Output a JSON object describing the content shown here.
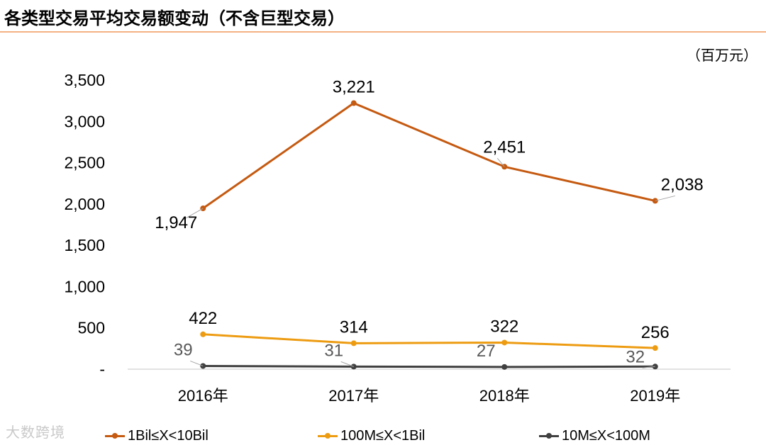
{
  "header": {
    "title": "各类型交易平均交易额变动（不含巨型交易）",
    "unit": "（百万元）"
  },
  "watermark": "大数跨境",
  "chart_data": {
    "type": "line",
    "categories": [
      "2016年",
      "2017年",
      "2018年",
      "2019年"
    ],
    "y_ticks": [
      "-",
      "500",
      "1,000",
      "1,500",
      "2,000",
      "2,500",
      "3,000",
      "3,500"
    ],
    "ylim": [
      0,
      3500
    ],
    "grid": false,
    "legend": "bottom",
    "series": [
      {
        "name": "1Bil≤X<10Bil",
        "values": [
          1947,
          3221,
          2451,
          2038
        ],
        "labels": [
          "1,947",
          "3,221",
          "2,451",
          "2,038"
        ],
        "color": "#c55a11"
      },
      {
        "name": "100M≤X<1Bil",
        "values": [
          422,
          314,
          322,
          256
        ],
        "labels": [
          "422",
          "314",
          "322",
          "256"
        ],
        "color": "#ed9c12"
      },
      {
        "name": "10M≤X<100M",
        "values": [
          39,
          31,
          27,
          32
        ],
        "labels": [
          "39",
          "31",
          "27",
          "32"
        ],
        "color": "#404040"
      }
    ]
  }
}
